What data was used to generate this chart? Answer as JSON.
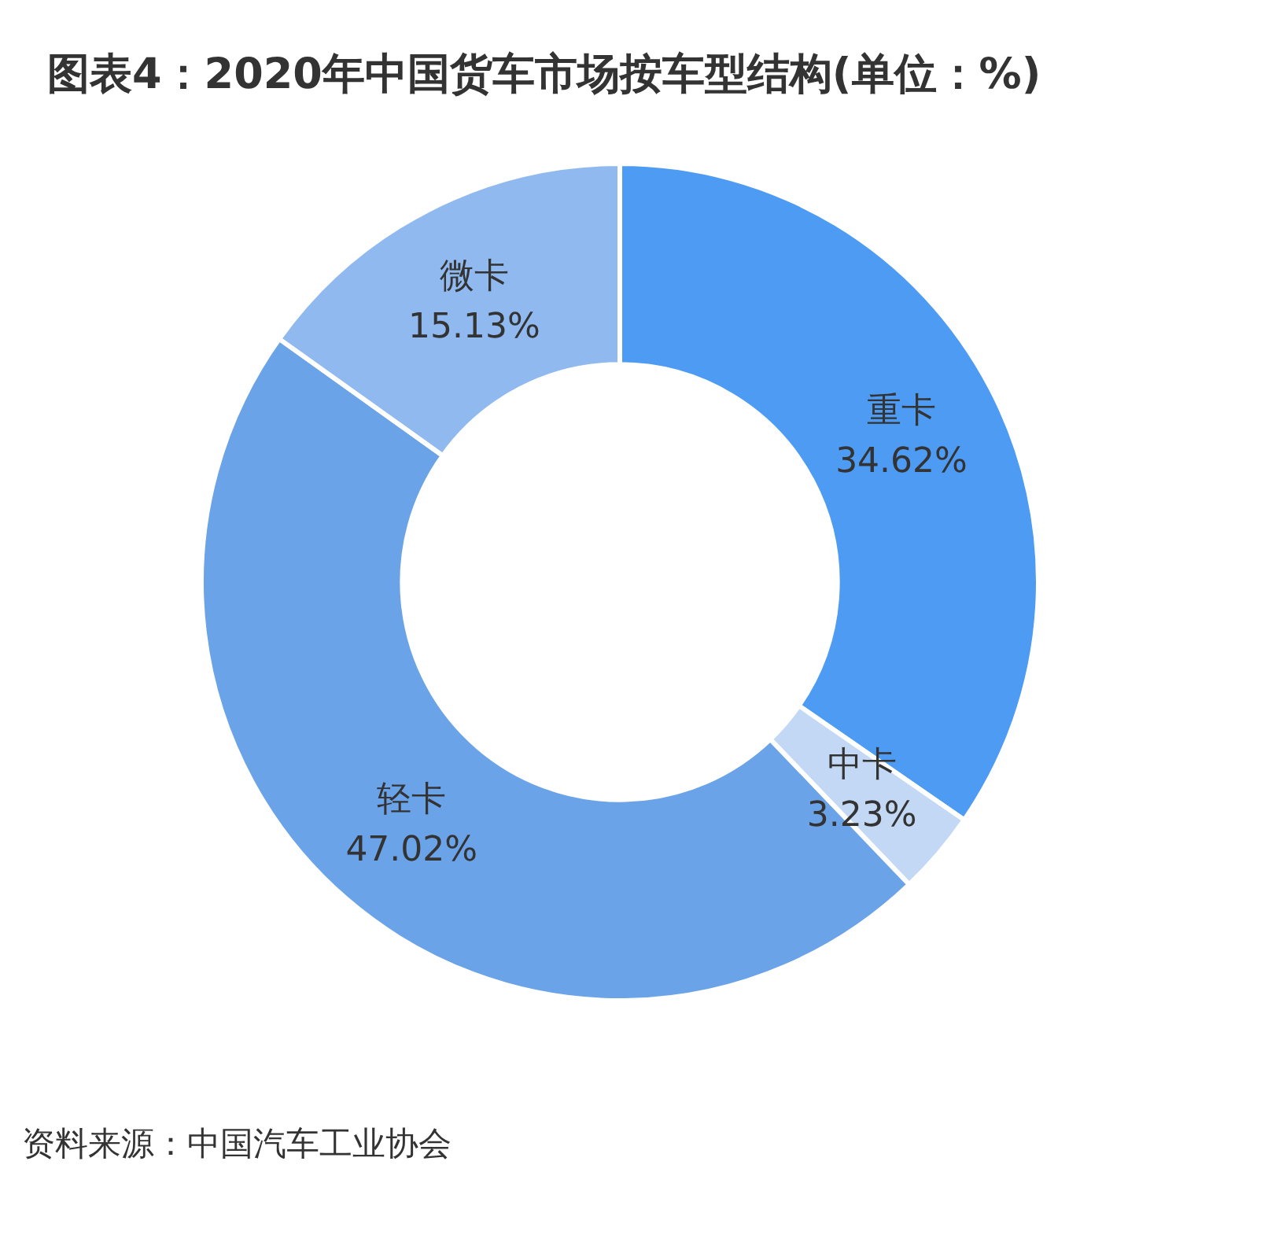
{
  "chart_data": {
    "type": "donut",
    "title": "图表4：2020年中国货车市场按车型结构(单位：%)",
    "categories": [
      "重卡",
      "中卡",
      "轻卡",
      "微卡"
    ],
    "values": [
      34.62,
      3.23,
      47.02,
      15.13
    ],
    "colors": [
      "#4d9bf3",
      "#c3d8f4",
      "#6ba3e8",
      "#8fb9ef"
    ],
    "value_labels": [
      "34.62%",
      "3.23%",
      "47.02%",
      "15.13%"
    ],
    "annotations": [
      "资料来源：中国汽车工业协会"
    ]
  }
}
